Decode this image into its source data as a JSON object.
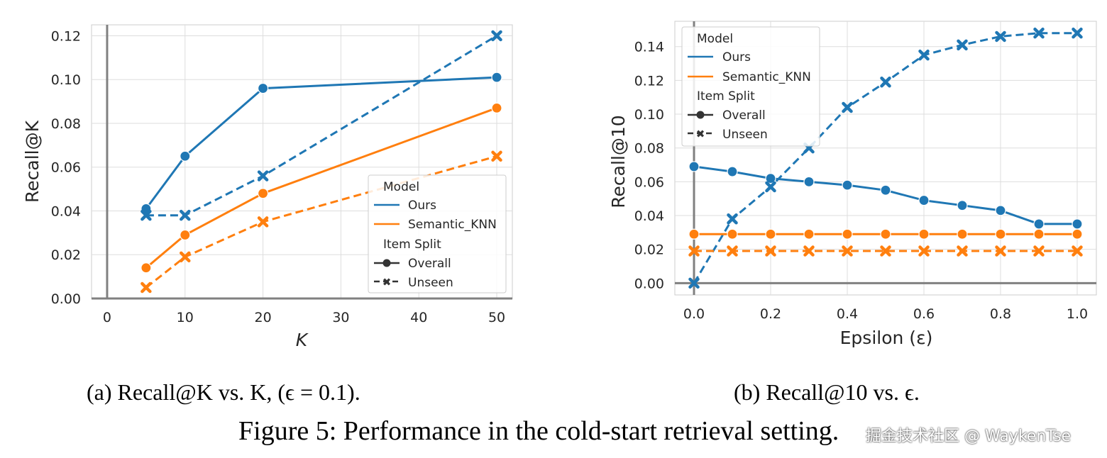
{
  "colors": {
    "ours": "#1f77b4",
    "semantic_knn": "#ff7f0e"
  },
  "chart_data": [
    {
      "type": "line",
      "xlabel": "K",
      "ylabel": "Recall@K",
      "xlim": [
        -2,
        52
      ],
      "ylim": [
        0,
        0.125
      ],
      "x_ticks": [
        0,
        10,
        20,
        30,
        40,
        50
      ],
      "x_tick_labels": [
        "0",
        "10",
        "20",
        "30",
        "40",
        "50"
      ],
      "y_ticks": [
        0,
        0.02,
        0.04,
        0.06,
        0.08,
        0.1,
        0.12
      ],
      "y_tick_labels": [
        "0.00",
        "0.02",
        "0.04",
        "0.06",
        "0.08",
        "0.10",
        "0.12"
      ],
      "x": [
        5,
        10,
        20,
        50
      ],
      "series": [
        {
          "name": "Ours - Overall",
          "model": "Ours",
          "split": "Overall",
          "values": [
            0.041,
            0.065,
            0.096,
            0.101
          ]
        },
        {
          "name": "Ours - Unseen",
          "model": "Ours",
          "split": "Unseen",
          "values": [
            0.038,
            0.038,
            0.056,
            0.12
          ]
        },
        {
          "name": "Semantic_KNN - Overall",
          "model": "Semantic_KNN",
          "split": "Overall",
          "values": [
            0.014,
            0.029,
            0.048,
            0.087
          ]
        },
        {
          "name": "Semantic_KNN - Unseen",
          "model": "Semantic_KNN",
          "split": "Unseen",
          "values": [
            0.005,
            0.019,
            0.035,
            0.065
          ]
        }
      ],
      "legend": {
        "position": "lower-right",
        "model_title": "Model",
        "split_title": "Item Split",
        "entries": [
          "Ours",
          "Semantic_KNN",
          "Overall",
          "Unseen"
        ]
      },
      "caption": "(a) Recall@K vs. K, (ϵ = 0.1)."
    },
    {
      "type": "line",
      "xlabel": "Epsilon (ε)",
      "ylabel": "Recall@10",
      "xlim": [
        -0.05,
        1.05
      ],
      "ylim": [
        -0.007,
        0.155
      ],
      "x_ticks": [
        0,
        0.2,
        0.4,
        0.6,
        0.8,
        1.0
      ],
      "x_tick_labels": [
        "0.0",
        "0.2",
        "0.4",
        "0.6",
        "0.8",
        "1.0"
      ],
      "y_ticks": [
        0,
        0.02,
        0.04,
        0.06,
        0.08,
        0.1,
        0.12,
        0.14
      ],
      "y_tick_labels": [
        "0.00",
        "0.02",
        "0.04",
        "0.06",
        "0.08",
        "0.10",
        "0.12",
        "0.14"
      ],
      "x": [
        0,
        0.1,
        0.2,
        0.3,
        0.4,
        0.5,
        0.6,
        0.7,
        0.8,
        0.9,
        1.0
      ],
      "series": [
        {
          "name": "Ours - Overall",
          "model": "Ours",
          "split": "Overall",
          "values": [
            0.069,
            0.066,
            0.062,
            0.06,
            0.058,
            0.055,
            0.049,
            0.046,
            0.043,
            0.035,
            0.035
          ]
        },
        {
          "name": "Ours - Unseen",
          "model": "Ours",
          "split": "Unseen",
          "values": [
            0.0,
            0.038,
            0.057,
            0.08,
            0.104,
            0.119,
            0.135,
            0.141,
            0.146,
            0.148,
            0.148
          ]
        },
        {
          "name": "Semantic_KNN - Overall",
          "model": "Semantic_KNN",
          "split": "Overall",
          "values": [
            0.029,
            0.029,
            0.029,
            0.029,
            0.029,
            0.029,
            0.029,
            0.029,
            0.029,
            0.029,
            0.029
          ]
        },
        {
          "name": "Semantic_KNN - Unseen",
          "model": "Semantic_KNN",
          "split": "Unseen",
          "values": [
            0.019,
            0.019,
            0.019,
            0.019,
            0.019,
            0.019,
            0.019,
            0.019,
            0.019,
            0.019,
            0.019
          ]
        }
      ],
      "legend": {
        "position": "upper-left",
        "model_title": "Model",
        "split_title": "Item Split",
        "entries": [
          "Ours",
          "Semantic_KNN",
          "Overall",
          "Unseen"
        ]
      },
      "caption": "(b) Recall@10 vs. ϵ."
    }
  ],
  "figure_caption": "Figure 5: Performance in the cold-start retrieval setting.",
  "watermark": "掘金技术社区 @ WaykenTse"
}
